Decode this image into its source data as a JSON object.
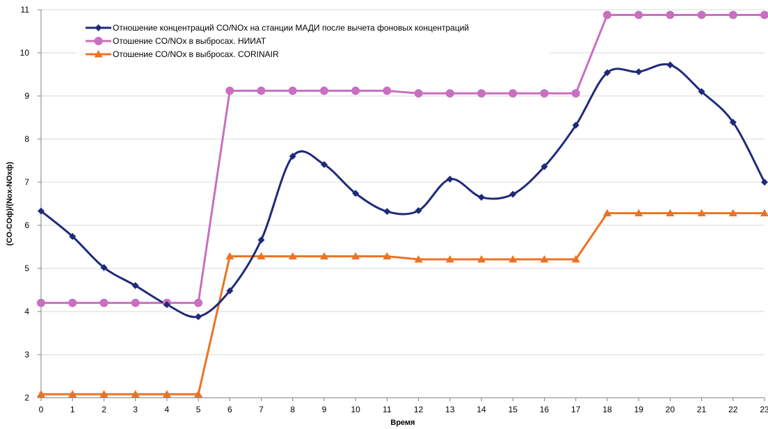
{
  "chart_data": {
    "type": "line",
    "x": [
      0,
      1,
      2,
      3,
      4,
      5,
      6,
      7,
      8,
      9,
      10,
      11,
      12,
      13,
      14,
      15,
      16,
      17,
      18,
      19,
      20,
      21,
      22,
      23
    ],
    "xlabel": "Время",
    "ylabel": "(CO-COф)/(Nox-NOxф)",
    "ylim": [
      2,
      11
    ],
    "yticks": [
      2,
      3,
      4,
      5,
      6,
      7,
      8,
      9,
      10,
      11
    ],
    "grid": "horizontal",
    "legend_position": "top-left",
    "series": [
      {
        "name": "Отношение концентраций CO/NOx на станции МАДИ после вычета фоновых концентраций",
        "color": "#1f2a7a",
        "marker": "diamond",
        "smooth": true,
        "values": [
          6.33,
          5.74,
          5.02,
          4.6,
          4.16,
          3.88,
          4.48,
          5.66,
          7.6,
          7.41,
          6.74,
          6.32,
          6.34,
          7.07,
          6.65,
          6.72,
          7.36,
          8.32,
          9.54,
          9.56,
          9.72,
          9.1,
          8.39,
          7.0
        ]
      },
      {
        "name": "Отошение CO/NOx в выбросах. НИИАТ",
        "color": "#c86fc0",
        "marker": "circle",
        "smooth": false,
        "values": [
          4.2,
          4.2,
          4.2,
          4.2,
          4.2,
          4.2,
          9.12,
          9.12,
          9.12,
          9.12,
          9.12,
          9.12,
          9.06,
          9.06,
          9.06,
          9.06,
          9.06,
          9.06,
          10.88,
          10.88,
          10.88,
          10.88,
          10.88,
          10.88
        ]
      },
      {
        "name": "Отошение CO/NOx в выбросах. CORINAIR",
        "color": "#ec7224",
        "marker": "triangle",
        "smooth": false,
        "values": [
          2.08,
          2.08,
          2.08,
          2.08,
          2.08,
          2.08,
          5.28,
          5.28,
          5.28,
          5.28,
          5.28,
          5.28,
          5.21,
          5.21,
          5.21,
          5.21,
          5.21,
          5.21,
          6.28,
          6.28,
          6.28,
          6.28,
          6.28,
          6.28
        ]
      }
    ]
  }
}
